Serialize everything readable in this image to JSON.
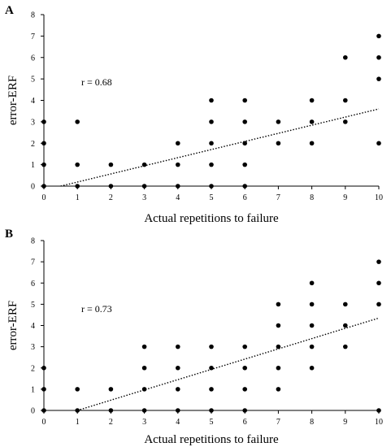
{
  "chart_data": [
    {
      "type": "scatter",
      "panel": "A",
      "xlabel": "Actual repetitions to failure",
      "ylabel": "error-ERF",
      "annotation": "r = 0.68",
      "xlim": [
        0,
        10
      ],
      "ylim": [
        0,
        8
      ],
      "xticks": [
        "0",
        "1",
        "2",
        "3",
        "4",
        "5",
        "6",
        "7",
        "8",
        "9",
        "10"
      ],
      "yticks": [
        "0",
        "1",
        "2",
        "3",
        "4",
        "5",
        "6",
        "7",
        "8"
      ],
      "points": [
        [
          0,
          0
        ],
        [
          0,
          1
        ],
        [
          0,
          2
        ],
        [
          0,
          3
        ],
        [
          1,
          0
        ],
        [
          1,
          1
        ],
        [
          1,
          3
        ],
        [
          2,
          0
        ],
        [
          2,
          1
        ],
        [
          3,
          0
        ],
        [
          3,
          1
        ],
        [
          4,
          0
        ],
        [
          4,
          1
        ],
        [
          4,
          2
        ],
        [
          5,
          0
        ],
        [
          5,
          1
        ],
        [
          5,
          2
        ],
        [
          5,
          3
        ],
        [
          5,
          4
        ],
        [
          6,
          0
        ],
        [
          6,
          1
        ],
        [
          6,
          2
        ],
        [
          6,
          3
        ],
        [
          6,
          4
        ],
        [
          7,
          2
        ],
        [
          7,
          3
        ],
        [
          8,
          2
        ],
        [
          8,
          3
        ],
        [
          8,
          4
        ],
        [
          9,
          3
        ],
        [
          9,
          4
        ],
        [
          9,
          6
        ],
        [
          10,
          2
        ],
        [
          10,
          5
        ],
        [
          10,
          6
        ],
        [
          10,
          7
        ]
      ],
      "trendline": [
        [
          0.5,
          0
        ],
        [
          10,
          3.6
        ]
      ]
    },
    {
      "type": "scatter",
      "panel": "B",
      "xlabel": "Actual repetitions to failure",
      "ylabel": "error-ERF",
      "annotation": "r = 0.73",
      "xlim": [
        0,
        10
      ],
      "ylim": [
        0,
        8
      ],
      "xticks": [
        "0",
        "1",
        "2",
        "3",
        "4",
        "5",
        "6",
        "7",
        "8",
        "9",
        "10"
      ],
      "yticks": [
        "0",
        "1",
        "2",
        "3",
        "4",
        "5",
        "6",
        "7",
        "8"
      ],
      "points": [
        [
          0,
          0
        ],
        [
          0,
          1
        ],
        [
          0,
          2
        ],
        [
          1,
          0
        ],
        [
          1,
          1
        ],
        [
          2,
          0
        ],
        [
          2,
          1
        ],
        [
          3,
          0
        ],
        [
          3,
          1
        ],
        [
          3,
          2
        ],
        [
          3,
          3
        ],
        [
          4,
          0
        ],
        [
          4,
          1
        ],
        [
          4,
          2
        ],
        [
          4,
          3
        ],
        [
          5,
          0
        ],
        [
          5,
          1
        ],
        [
          5,
          2
        ],
        [
          5,
          3
        ],
        [
          6,
          0
        ],
        [
          6,
          1
        ],
        [
          6,
          2
        ],
        [
          6,
          3
        ],
        [
          7,
          1
        ],
        [
          7,
          2
        ],
        [
          7,
          3
        ],
        [
          7,
          4
        ],
        [
          7,
          5
        ],
        [
          8,
          2
        ],
        [
          8,
          3
        ],
        [
          8,
          4
        ],
        [
          8,
          5
        ],
        [
          8,
          6
        ],
        [
          9,
          3
        ],
        [
          9,
          4
        ],
        [
          9,
          5
        ],
        [
          10,
          0
        ],
        [
          10,
          5
        ],
        [
          10,
          6
        ],
        [
          10,
          7
        ]
      ],
      "trendline": [
        [
          1,
          0
        ],
        [
          10,
          4.35
        ]
      ]
    }
  ]
}
